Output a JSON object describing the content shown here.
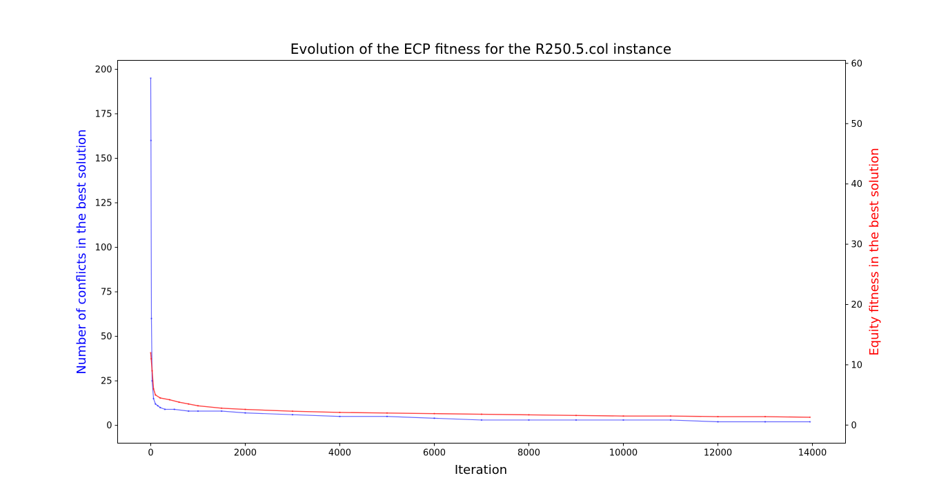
{
  "chart_data": {
    "type": "line",
    "title": "Evolution of the ECP fitness for the R250.5.col instance",
    "xlabel": "Iteration",
    "ylabel_left": "Number of conflicts in the best solution",
    "ylabel_right": "Equity fitness in the best solution",
    "xlim": [
      -700,
      14700
    ],
    "ylim_left": [
      -10,
      205
    ],
    "ylim_right": [
      -3,
      60.5
    ],
    "x_ticks": [
      0,
      2000,
      4000,
      6000,
      8000,
      10000,
      12000,
      14000
    ],
    "y_left_ticks": [
      0,
      25,
      50,
      75,
      100,
      125,
      150,
      175,
      200
    ],
    "y_right_ticks": [
      0,
      10,
      20,
      30,
      40,
      50,
      60
    ],
    "grid": false,
    "series": [
      {
        "name": "Number of conflicts in the best solution",
        "axis": "left",
        "color": "#0000ff",
        "x": [
          0,
          5,
          15,
          30,
          60,
          100,
          150,
          200,
          300,
          500,
          800,
          1000,
          1500,
          2000,
          3000,
          4000,
          5000,
          6000,
          7000,
          8000,
          9000,
          10000,
          11000,
          12000,
          13000,
          13950
        ],
        "y": [
          195,
          160,
          60,
          25,
          15,
          12,
          11,
          10,
          9,
          9,
          8,
          8,
          8,
          7,
          6,
          5,
          5,
          4,
          3,
          3,
          3,
          3,
          3,
          2,
          2,
          2
        ]
      },
      {
        "name": "Equity fitness in the best solution",
        "axis": "right",
        "color": "#ff0000",
        "x": [
          0,
          10,
          30,
          60,
          100,
          200,
          400,
          600,
          800,
          1000,
          1500,
          2000,
          3000,
          4000,
          5000,
          6000,
          7000,
          8000,
          9000,
          10000,
          11000,
          12000,
          13000,
          13950
        ],
        "y": [
          12,
          11,
          9,
          6,
          5,
          4.5,
          4.2,
          3.8,
          3.5,
          3.2,
          2.8,
          2.6,
          2.3,
          2.1,
          2.0,
          1.9,
          1.8,
          1.7,
          1.6,
          1.5,
          1.5,
          1.4,
          1.4,
          1.3
        ]
      }
    ]
  },
  "colors": {
    "left_axis_label": "#0000ff",
    "right_axis_label": "#ff0000",
    "axes": "#000000"
  }
}
